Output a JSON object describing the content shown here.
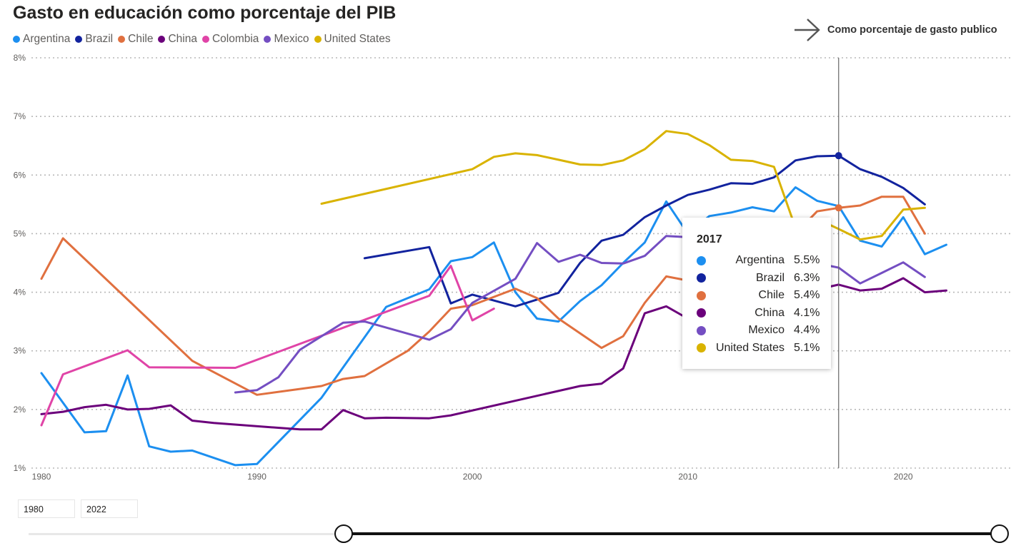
{
  "title": "Gasto en educación como porcentaje del PIB",
  "nav_link": {
    "label": "Como porcentaje de gasto publico",
    "icon": "arrow-right-icon"
  },
  "legend": [
    {
      "name": "Argentina",
      "color": "#1c8ff0"
    },
    {
      "name": "Brazil",
      "color": "#12239e"
    },
    {
      "name": "Chile",
      "color": "#e0703f"
    },
    {
      "name": "China",
      "color": "#6b007b"
    },
    {
      "name": "Colombia",
      "color": "#e044a7"
    },
    {
      "name": "Mexico",
      "color": "#744ec2"
    },
    {
      "name": "United States",
      "color": "#d9b300"
    }
  ],
  "tooltip": {
    "year": "2017",
    "rows": [
      {
        "name": "Argentina",
        "value": "5.5%",
        "color": "#1c8ff0"
      },
      {
        "name": "Brazil",
        "value": "6.3%",
        "color": "#12239e"
      },
      {
        "name": "Chile",
        "value": "5.4%",
        "color": "#e0703f"
      },
      {
        "name": "China",
        "value": "4.1%",
        "color": "#6b007b"
      },
      {
        "name": "Mexico",
        "value": "4.4%",
        "color": "#744ec2"
      },
      {
        "name": "United States",
        "value": "5.1%",
        "color": "#d9b300"
      }
    ]
  },
  "range": {
    "start": "1980",
    "end": "2022",
    "start_year": 1980,
    "end_year": 2022
  },
  "chart_data": {
    "type": "line",
    "xlim": [
      1980,
      2025
    ],
    "ylim": [
      1,
      8
    ],
    "x_ticks": [
      1980,
      1990,
      2000,
      2010,
      2020
    ],
    "x_tick_labels": [
      "1980",
      "1990",
      "2000",
      "2010",
      "2020"
    ],
    "y_ticks": [
      1,
      2,
      3,
      4,
      5,
      6,
      7,
      8
    ],
    "y_tick_labels": [
      "1%",
      "2%",
      "3%",
      "4%",
      "5%",
      "6%",
      "7%",
      "8%"
    ],
    "grid": true,
    "legend_position": "top-left",
    "highlight_x": 2017,
    "series": [
      {
        "name": "Argentina",
        "color": "#1c8ff0",
        "points": [
          [
            1980,
            2.62
          ],
          [
            1982,
            1.61
          ],
          [
            1983,
            1.63
          ],
          [
            1984,
            2.58
          ],
          [
            1985,
            1.37
          ],
          [
            1986,
            1.28
          ],
          [
            1987,
            1.3
          ],
          [
            1989,
            1.05
          ],
          [
            1990,
            1.07
          ],
          [
            1993,
            2.2
          ],
          [
            1996,
            3.75
          ],
          [
            1998,
            4.05
          ],
          [
            1999,
            4.53
          ],
          [
            2000,
            4.6
          ],
          [
            2001,
            4.85
          ],
          [
            2002,
            4.0
          ],
          [
            2003,
            3.55
          ],
          [
            2004,
            3.5
          ],
          [
            2005,
            3.85
          ],
          [
            2006,
            4.12
          ],
          [
            2007,
            4.5
          ],
          [
            2008,
            4.85
          ],
          [
            2009,
            5.55
          ],
          [
            2010,
            5.0
          ],
          [
            2011,
            5.3
          ],
          [
            2012,
            5.36
          ],
          [
            2013,
            5.45
          ],
          [
            2014,
            5.38
          ],
          [
            2015,
            5.79
          ],
          [
            2016,
            5.56
          ],
          [
            2017,
            5.47
          ],
          [
            2018,
            4.88
          ],
          [
            2019,
            4.78
          ],
          [
            2020,
            5.28
          ],
          [
            2021,
            4.65
          ],
          [
            2022,
            4.81
          ]
        ]
      },
      {
        "name": "Brazil",
        "color": "#12239e",
        "points": [
          [
            1995,
            4.58
          ],
          [
            1998,
            4.77
          ],
          [
            1999,
            3.81
          ],
          [
            2000,
            3.96
          ],
          [
            2002,
            3.76
          ],
          [
            2004,
            3.99
          ],
          [
            2005,
            4.5
          ],
          [
            2006,
            4.88
          ],
          [
            2007,
            4.98
          ],
          [
            2008,
            5.28
          ],
          [
            2009,
            5.48
          ],
          [
            2010,
            5.66
          ],
          [
            2011,
            5.75
          ],
          [
            2012,
            5.86
          ],
          [
            2013,
            5.85
          ],
          [
            2014,
            5.96
          ],
          [
            2015,
            6.25
          ],
          [
            2016,
            6.32
          ],
          [
            2017,
            6.33
          ],
          [
            2018,
            6.1
          ],
          [
            2019,
            5.97
          ],
          [
            2020,
            5.78
          ],
          [
            2021,
            5.5
          ]
        ]
      },
      {
        "name": "Chile",
        "color": "#e0703f",
        "points": [
          [
            1980,
            4.23
          ],
          [
            1981,
            4.92
          ],
          [
            1987,
            2.83
          ],
          [
            1990,
            2.25
          ],
          [
            1993,
            2.4
          ],
          [
            1994,
            2.52
          ],
          [
            1995,
            2.57
          ],
          [
            1997,
            3.0
          ],
          [
            1998,
            3.33
          ],
          [
            1999,
            3.72
          ],
          [
            2000,
            3.78
          ],
          [
            2002,
            4.06
          ],
          [
            2003,
            3.9
          ],
          [
            2004,
            3.55
          ],
          [
            2005,
            3.3
          ],
          [
            2006,
            3.05
          ],
          [
            2007,
            3.25
          ],
          [
            2008,
            3.82
          ],
          [
            2009,
            4.27
          ],
          [
            2010,
            4.2
          ],
          [
            2015,
            5.0
          ],
          [
            2016,
            5.38
          ],
          [
            2017,
            5.44
          ],
          [
            2018,
            5.48
          ],
          [
            2019,
            5.63
          ],
          [
            2020,
            5.63
          ],
          [
            2021,
            5.0
          ]
        ]
      },
      {
        "name": "China",
        "color": "#6b007b",
        "points": [
          [
            1980,
            1.92
          ],
          [
            1981,
            1.96
          ],
          [
            1982,
            2.04
          ],
          [
            1983,
            2.08
          ],
          [
            1984,
            2.0
          ],
          [
            1985,
            2.01
          ],
          [
            1986,
            2.07
          ],
          [
            1987,
            1.81
          ],
          [
            1988,
            1.77
          ],
          [
            1992,
            1.66
          ],
          [
            1993,
            1.66
          ],
          [
            1994,
            1.99
          ],
          [
            1995,
            1.85
          ],
          [
            1996,
            1.86
          ],
          [
            1998,
            1.85
          ],
          [
            1999,
            1.9
          ],
          [
            2005,
            2.4
          ],
          [
            2006,
            2.44
          ],
          [
            2007,
            2.7
          ],
          [
            2008,
            3.64
          ],
          [
            2009,
            3.76
          ],
          [
            2010,
            3.55
          ],
          [
            2017,
            4.13
          ],
          [
            2018,
            4.03
          ],
          [
            2019,
            4.06
          ],
          [
            2020,
            4.24
          ],
          [
            2021,
            4.0
          ],
          [
            2022,
            4.03
          ]
        ]
      },
      {
        "name": "Colombia",
        "color": "#e044a7",
        "points": [
          [
            1980,
            1.73
          ],
          [
            1981,
            2.6
          ],
          [
            1984,
            3.01
          ],
          [
            1985,
            2.72
          ],
          [
            1989,
            2.71
          ],
          [
            1998,
            3.94
          ],
          [
            1999,
            4.45
          ],
          [
            2000,
            3.52
          ],
          [
            2001,
            3.72
          ]
        ]
      },
      {
        "name": "Mexico",
        "color": "#744ec2",
        "points": [
          [
            1989,
            2.29
          ],
          [
            1990,
            2.33
          ],
          [
            1991,
            2.55
          ],
          [
            1992,
            3.02
          ],
          [
            1994,
            3.48
          ],
          [
            1995,
            3.5
          ],
          [
            1998,
            3.19
          ],
          [
            1999,
            3.37
          ],
          [
            2000,
            3.82
          ],
          [
            2002,
            4.23
          ],
          [
            2003,
            4.84
          ],
          [
            2004,
            4.52
          ],
          [
            2005,
            4.64
          ],
          [
            2006,
            4.5
          ],
          [
            2007,
            4.49
          ],
          [
            2008,
            4.62
          ],
          [
            2009,
            4.96
          ],
          [
            2010,
            4.94
          ],
          [
            2017,
            4.42
          ],
          [
            2018,
            4.15
          ],
          [
            2019,
            4.33
          ],
          [
            2020,
            4.51
          ],
          [
            2021,
            4.26
          ]
        ]
      },
      {
        "name": "United States",
        "color": "#d9b300",
        "points": [
          [
            1993,
            5.51
          ],
          [
            2000,
            6.1
          ],
          [
            2001,
            6.31
          ],
          [
            2002,
            6.37
          ],
          [
            2003,
            6.34
          ],
          [
            2004,
            6.26
          ],
          [
            2005,
            6.18
          ],
          [
            2006,
            6.17
          ],
          [
            2007,
            6.25
          ],
          [
            2008,
            6.44
          ],
          [
            2009,
            6.75
          ],
          [
            2010,
            6.7
          ],
          [
            2011,
            6.51
          ],
          [
            2012,
            6.26
          ],
          [
            2013,
            6.24
          ],
          [
            2014,
            6.14
          ],
          [
            2015,
            5.1
          ],
          [
            2016,
            5.25
          ],
          [
            2017,
            5.08
          ],
          [
            2018,
            4.9
          ],
          [
            2019,
            4.96
          ],
          [
            2020,
            5.41
          ],
          [
            2021,
            5.44
          ]
        ]
      }
    ]
  }
}
